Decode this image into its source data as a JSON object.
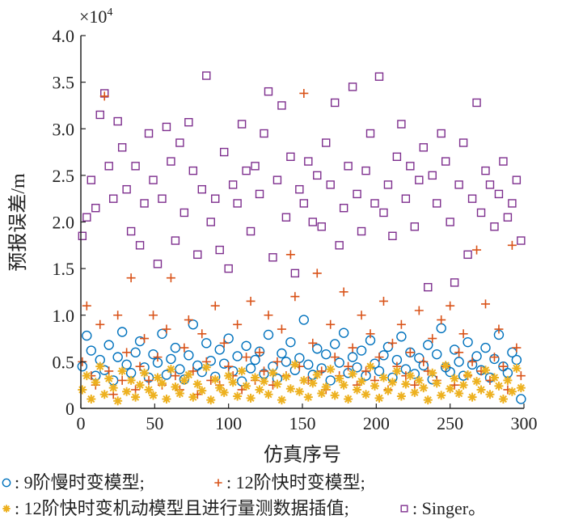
{
  "chart_data": {
    "type": "scatter",
    "title": "",
    "xlabel": "仿真序号",
    "ylabel": "预报误差/m",
    "y_multiplier": "×10",
    "y_multiplier_exp": "4",
    "xlim": [
      0,
      300
    ],
    "ylim": [
      0,
      4.0
    ],
    "xticks": [
      0,
      50,
      100,
      150,
      200,
      250,
      300
    ],
    "xtick_labels": [
      "0",
      "50",
      "100",
      "150",
      "200",
      "250",
      "300"
    ],
    "yticks": [
      0,
      0.5,
      1.0,
      1.5,
      2.0,
      2.5,
      3.0,
      3.5,
      4.0
    ],
    "ytick_labels": [
      "0",
      "0.5",
      "1.0",
      "1.5",
      "2.0",
      "2.5",
      "3.0",
      "3.5",
      "4.0"
    ],
    "grid": false,
    "legend_placement": "bottom",
    "x_start": 1,
    "x_step": 3,
    "series": [
      {
        "name": "9阶慢时变模型",
        "legend_label": ": 9阶慢时变模型;",
        "marker": "circle",
        "color": "#0072bd",
        "values": [
          0.45,
          0.78,
          0.62,
          0.35,
          0.52,
          0.41,
          0.68,
          0.3,
          0.55,
          0.82,
          0.47,
          0.38,
          0.6,
          0.72,
          0.44,
          0.33,
          0.58,
          0.49,
          0.8,
          0.36,
          0.53,
          0.65,
          0.42,
          0.31,
          0.57,
          0.9,
          0.46,
          0.39,
          0.7,
          0.51,
          0.34,
          0.63,
          0.48,
          0.75,
          0.4,
          0.56,
          0.29,
          0.67,
          0.43,
          0.52,
          0.61,
          0.37,
          0.79,
          0.45,
          0.32,
          0.59,
          0.5,
          0.71,
          0.41,
          0.54,
          0.95,
          0.47,
          0.36,
          0.64,
          0.43,
          0.58,
          0.3,
          0.69,
          0.49,
          0.81,
          0.38,
          0.55,
          0.44,
          0.62,
          0.35,
          0.73,
          0.48,
          0.4,
          0.57,
          0.66,
          0.33,
          0.52,
          0.77,
          0.42,
          0.6,
          0.37,
          0.54,
          0.46,
          0.68,
          0.31,
          0.58,
          0.86,
          0.44,
          0.39,
          0.63,
          0.5,
          0.35,
          0.71,
          0.47,
          0.56,
          0.41,
          0.65,
          0.33,
          0.53,
          0.79,
          0.45,
          0.38,
          0.6,
          0.52,
          0.1
        ]
      },
      {
        "name": "12阶快时变模型",
        "legend_label": ": 12阶快时变模型;",
        "marker": "plus",
        "color": "#d95319",
        "values": [
          0.5,
          1.1,
          0.35,
          0.25,
          0.9,
          3.35,
          0.4,
          0.15,
          1.0,
          0.3,
          0.6,
          1.4,
          0.2,
          0.45,
          0.75,
          0.3,
          1.0,
          0.55,
          0.25,
          0.85,
          1.4,
          0.35,
          0.2,
          0.65,
          0.95,
          0.4,
          0.15,
          0.8,
          0.5,
          0.3,
          1.1,
          0.25,
          0.7,
          0.45,
          0.35,
          0.9,
          0.2,
          0.55,
          1.15,
          0.3,
          0.6,
          0.4,
          1.0,
          0.25,
          0.5,
          0.85,
          0.35,
          1.65,
          1.2,
          0.45,
          3.38,
          0.3,
          0.7,
          1.45,
          0.4,
          0.2,
          0.9,
          0.55,
          0.35,
          1.25,
          0.45,
          0.65,
          0.25,
          1.0,
          0.4,
          0.8,
          0.3,
          0.55,
          1.15,
          0.2,
          0.7,
          0.45,
          0.9,
          0.35,
          0.6,
          0.25,
          1.05,
          0.5,
          0.4,
          0.75,
          0.3,
          0.95,
          0.45,
          1.1,
          0.25,
          0.6,
          0.8,
          0.35,
          0.5,
          1.7,
          0.4,
          1.12,
          0.3,
          0.55,
          0.85,
          0.45,
          0.2,
          1.75,
          0.65,
          0.35
        ]
      },
      {
        "name": "12阶快时变机动模型且进行量测数据插值",
        "legend_label": ": 12阶快时变机动模型且进行量测数据插值;",
        "marker": "star",
        "color": "#edb120",
        "values": [
          0.2,
          0.35,
          0.1,
          0.28,
          0.45,
          0.15,
          0.32,
          0.22,
          0.08,
          0.4,
          0.18,
          0.3,
          0.12,
          0.25,
          0.38,
          0.2,
          0.14,
          0.33,
          0.27,
          0.1,
          0.42,
          0.23,
          0.16,
          0.3,
          0.36,
          0.12,
          0.26,
          0.19,
          0.44,
          0.09,
          0.31,
          0.22,
          0.17,
          0.35,
          0.28,
          0.13,
          0.4,
          0.24,
          0.11,
          0.33,
          0.2,
          0.29,
          0.15,
          0.38,
          0.26,
          0.09,
          0.34,
          0.21,
          0.47,
          0.18,
          0.3,
          0.12,
          0.27,
          0.36,
          0.16,
          0.23,
          0.42,
          0.14,
          0.32,
          0.25,
          0.1,
          0.37,
          0.2,
          0.29,
          0.15,
          0.45,
          0.24,
          0.11,
          0.33,
          0.19,
          0.28,
          0.4,
          0.13,
          0.26,
          0.35,
          0.17,
          0.3,
          0.22,
          0.09,
          0.38,
          0.27,
          0.14,
          0.46,
          0.21,
          0.32,
          0.16,
          0.25,
          0.36,
          0.12,
          0.29,
          0.2,
          0.41,
          0.15,
          0.33,
          0.24,
          0.1,
          0.3,
          0.18,
          0.43,
          0.22
        ]
      },
      {
        "name": "Singer",
        "legend_label": ": Singer。",
        "marker": "square",
        "color": "#7e2f8e",
        "values": [
          1.85,
          2.05,
          2.45,
          2.15,
          3.15,
          3.38,
          2.6,
          2.25,
          3.08,
          2.8,
          2.35,
          1.9,
          2.6,
          1.75,
          2.2,
          2.95,
          2.45,
          1.55,
          2.25,
          3.02,
          2.65,
          1.8,
          2.85,
          2.1,
          3.07,
          2.55,
          1.65,
          2.35,
          3.57,
          2.0,
          2.25,
          1.7,
          2.75,
          1.5,
          2.4,
          2.2,
          3.05,
          2.55,
          1.9,
          2.6,
          2.3,
          2.95,
          3.4,
          1.62,
          2.45,
          3.25,
          2.05,
          2.7,
          1.45,
          2.35,
          2.2,
          2.65,
          2.0,
          2.5,
          1.95,
          2.85,
          2.4,
          3.28,
          1.75,
          2.15,
          2.6,
          3.45,
          2.3,
          1.9,
          2.55,
          2.95,
          2.2,
          3.56,
          2.1,
          2.4,
          1.85,
          2.7,
          3.05,
          2.25,
          2.6,
          1.95,
          2.45,
          2.8,
          1.3,
          2.5,
          2.2,
          2.95,
          2.65,
          2.0,
          1.35,
          2.4,
          2.85,
          1.65,
          2.25,
          3.28,
          2.1,
          2.55,
          2.4,
          1.95,
          2.3,
          2.65,
          2.05,
          2.2,
          2.45,
          1.8
        ]
      }
    ]
  }
}
